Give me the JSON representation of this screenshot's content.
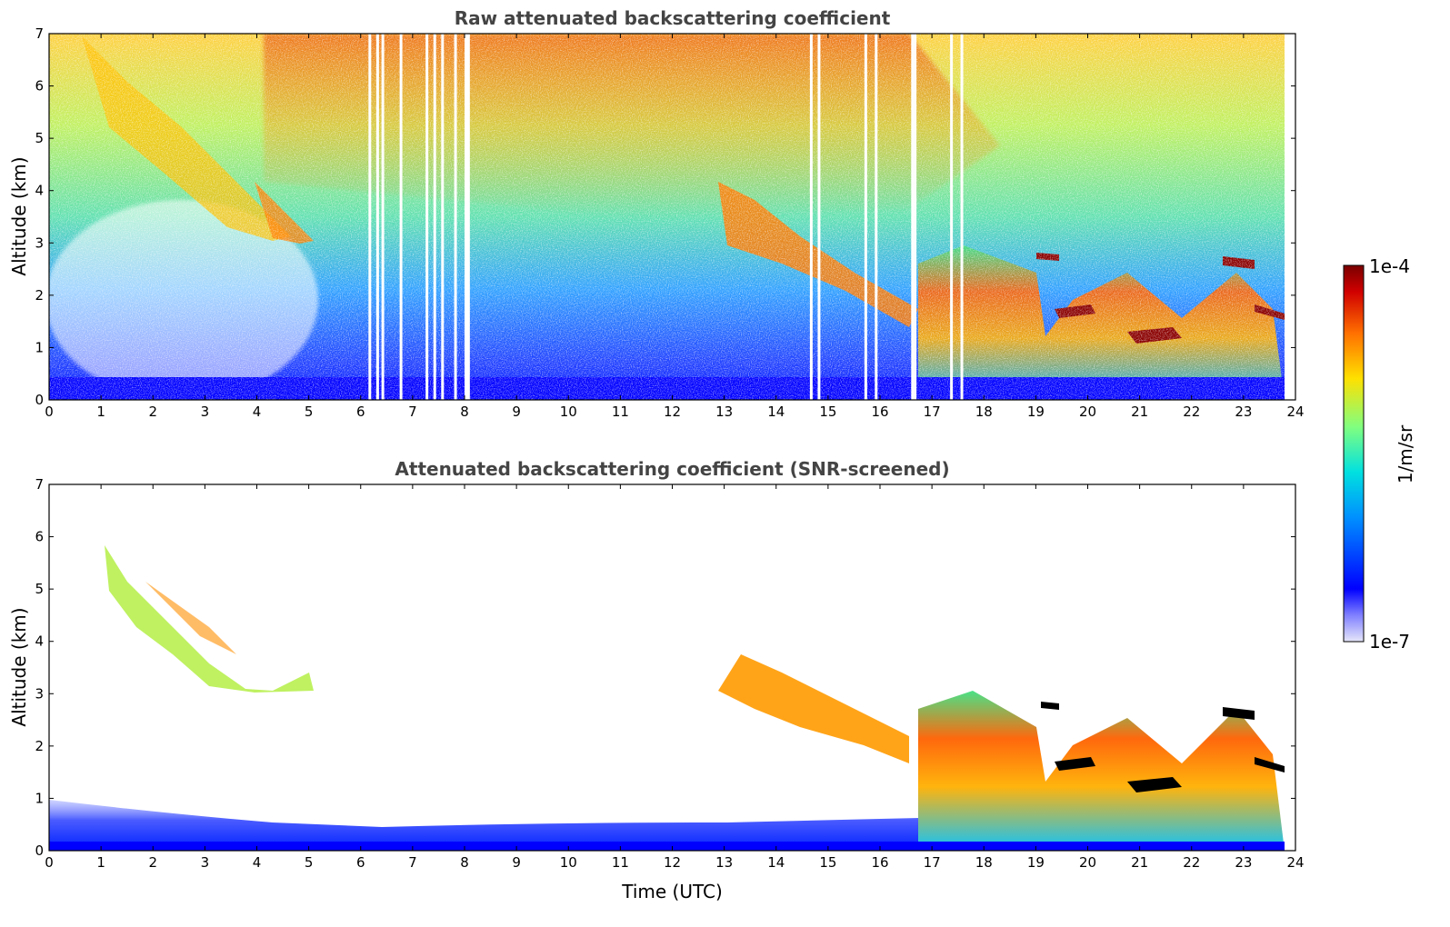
{
  "chart_data": [
    {
      "type": "heatmap",
      "title": "Raw attenuated backscattering coefficient",
      "xlabel": "",
      "ylabel": "Altitude (km)",
      "xlim": [
        0,
        24
      ],
      "ylim": [
        0,
        7
      ],
      "x_ticks": [
        "0",
        "1",
        "2",
        "3",
        "4",
        "5",
        "6",
        "7",
        "8",
        "9",
        "10",
        "11",
        "12",
        "13",
        "14",
        "15",
        "16",
        "17",
        "18",
        "19",
        "20",
        "21",
        "22",
        "23",
        "24"
      ],
      "y_ticks": [
        "0",
        "1",
        "2",
        "3",
        "4",
        "5",
        "6",
        "7"
      ],
      "grid": false,
      "data_end_hour": 23.8,
      "missing_data_hours": [
        6.15,
        6.3,
        6.4,
        6.75,
        7.25,
        7.4,
        7.55,
        7.8,
        8.0,
        8.05,
        14.65,
        14.8,
        15.7,
        15.9,
        16.6,
        16.65,
        17.35,
        17.55
      ]
    },
    {
      "type": "heatmap",
      "title": "Attenuated backscattering coefficient (SNR-screened)",
      "xlabel": "Time (UTC)",
      "ylabel": "Altitude (km)",
      "xlim": [
        0,
        24
      ],
      "ylim": [
        0,
        7
      ],
      "x_ticks": [
        "0",
        "1",
        "2",
        "3",
        "4",
        "5",
        "6",
        "7",
        "8",
        "9",
        "10",
        "11",
        "12",
        "13",
        "14",
        "15",
        "16",
        "17",
        "18",
        "19",
        "20",
        "21",
        "22",
        "23",
        "24"
      ],
      "y_ticks": [
        "0",
        "1",
        "2",
        "3",
        "4",
        "5",
        "6",
        "7"
      ],
      "grid": false,
      "data_end_hour": 23.8
    }
  ],
  "colorbar": {
    "label": "1/m/sr",
    "max_label": "1e-4",
    "min_label": "1e-7",
    "scale": "log",
    "colormap": [
      "#e6e6fa",
      "#0000ff",
      "#00c8ff",
      "#80ff80",
      "#ffe000",
      "#ff7000",
      "#d00000",
      "#7a0000"
    ]
  }
}
